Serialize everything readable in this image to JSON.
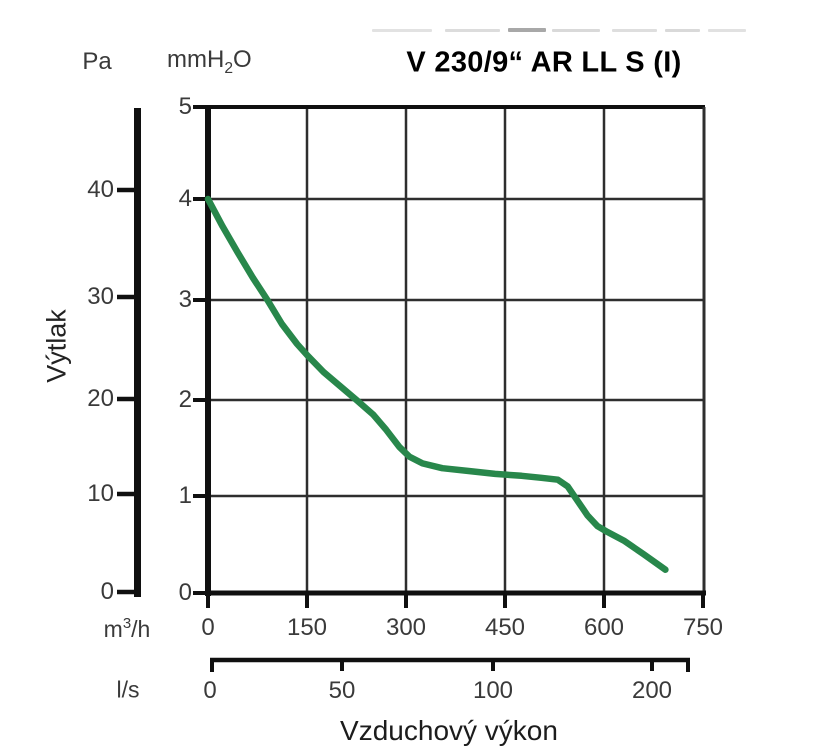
{
  "title": "V 230/9“ AR LL S (I)",
  "ylabel": "Výtlak",
  "xlabel": "Vzduchový výkon",
  "left_scale": {
    "unit": "Pa"
  },
  "mm_scale": {
    "unit_parts": {
      "base": "mmH",
      "sub": "2",
      "rest": "O"
    }
  },
  "x_scale_m3h": {
    "unit_parts": {
      "base": "m",
      "sup": "3",
      "rest": "/h"
    }
  },
  "x_scale_ls": {
    "unit": "l/s"
  },
  "colors": {
    "curve": "#28874b",
    "grid": "#2e2e2e",
    "axis": "#101010",
    "text": "#3a3a3a"
  },
  "chart_data": {
    "type": "line",
    "title": "V 230/9“ AR LL S (I)",
    "xlabel": "Vzduchový výkon",
    "ylabel": "Výtlak",
    "x_unit_primary": "m³/h",
    "x_unit_secondary": "l/s",
    "y_unit_primary": "Pa",
    "y_unit_secondary": "mmH₂O",
    "xlim": [
      0,
      750
    ],
    "ylim": [
      0,
      5
    ],
    "grid": true,
    "x_ticks_m3h": [
      0,
      150,
      300,
      450,
      600,
      750
    ],
    "x_ticks_ls": [
      0,
      50,
      100,
      200
    ],
    "y_ticks_mmH2O": [
      0,
      1,
      2,
      3,
      4,
      5
    ],
    "y_ticks_Pa": [
      0,
      10,
      20,
      30,
      40
    ],
    "series": [
      {
        "name": "V 230/9“ AR LL S (I)",
        "color": "#28874b",
        "points_m3h_mmH2O": [
          [
            0,
            4.0
          ],
          [
            22,
            3.73
          ],
          [
            45,
            3.47
          ],
          [
            68,
            3.22
          ],
          [
            90,
            3.0
          ],
          [
            112,
            2.76
          ],
          [
            135,
            2.56
          ],
          [
            150,
            2.45
          ],
          [
            175,
            2.28
          ],
          [
            200,
            2.14
          ],
          [
            225,
            2.0
          ],
          [
            250,
            1.85
          ],
          [
            270,
            1.69
          ],
          [
            290,
            1.51
          ],
          [
            305,
            1.41
          ],
          [
            325,
            1.34
          ],
          [
            355,
            1.29
          ],
          [
            395,
            1.26
          ],
          [
            435,
            1.23
          ],
          [
            475,
            1.21
          ],
          [
            505,
            1.19
          ],
          [
            530,
            1.17
          ],
          [
            545,
            1.1
          ],
          [
            560,
            0.95
          ],
          [
            575,
            0.8
          ],
          [
            590,
            0.69
          ],
          [
            605,
            0.63
          ],
          [
            630,
            0.54
          ],
          [
            660,
            0.4
          ],
          [
            693,
            0.24
          ]
        ]
      }
    ]
  }
}
